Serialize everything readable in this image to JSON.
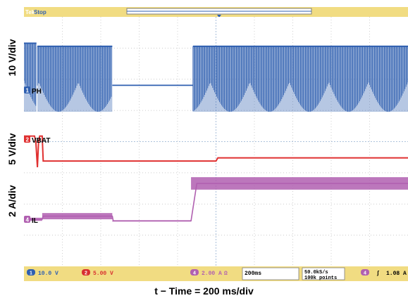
{
  "chart_data": {
    "type": "line",
    "title": "",
    "xlabel": "t − Time = 200 ms/div",
    "status": "Stop",
    "brand": "Tek",
    "x_unit": "ms",
    "x_divisions": 10,
    "xlim": [
      0,
      2000
    ],
    "y_axis_labels": [
      "10 V/div",
      "5 V/div",
      "2 A/div"
    ],
    "channels": [
      {
        "id": "1",
        "name": "PH",
        "scale": "10.0 V",
        "color": "#2f5fb0"
      },
      {
        "id": "2",
        "name": "VBAT",
        "scale": "5.00 V",
        "color": "#e03030"
      },
      {
        "id": "4",
        "name": "IL",
        "scale": "2.00 A",
        "color": "#b05fb0"
      }
    ],
    "series": [
      {
        "name": "PH",
        "channel": "1",
        "style": "switching",
        "segments": [
          {
            "t0": 0,
            "t1": 65,
            "state": "switching",
            "low_div": -0.7,
            "high_div": 1.5
          },
          {
            "t0": 70,
            "t1": 460,
            "state": "switching",
            "low_div": -0.7,
            "high_div": 1.4
          },
          {
            "t0": 460,
            "t1": 880,
            "state": "dc",
            "level_div": 0.15
          },
          {
            "t0": 880,
            "t1": 2000,
            "state": "switching",
            "low_div": -0.7,
            "high_div": 1.4
          }
        ]
      },
      {
        "name": "VBAT",
        "channel": "2",
        "style": "line",
        "points": [
          [
            0,
            0.1
          ],
          [
            55,
            0.1
          ],
          [
            62,
            -0.1
          ],
          [
            70,
            -0.9
          ],
          [
            76,
            -0.1
          ],
          [
            82,
            0.1
          ],
          [
            95,
            0.1
          ],
          [
            100,
            -0.7
          ],
          [
            1000,
            -0.7
          ],
          [
            1010,
            -0.6
          ],
          [
            2000,
            -0.6
          ]
        ]
      },
      {
        "name": "IL",
        "channel": "4",
        "style": "band",
        "points": [
          [
            0,
            0.0
          ],
          [
            95,
            0.0
          ],
          [
            100,
            0.1
          ],
          [
            460,
            0.1
          ],
          [
            465,
            -0.05
          ],
          [
            870,
            -0.05
          ],
          [
            900,
            1.15
          ],
          [
            2000,
            1.15
          ]
        ],
        "ripple_div": [
          [
            0,
            95,
            0.1
          ],
          [
            95,
            460,
            0.2
          ],
          [
            460,
            870,
            0.02
          ],
          [
            870,
            2000,
            0.4
          ]
        ]
      }
    ],
    "grid": true,
    "bottom_bar": {
      "ch1": "10.0 V",
      "ch2": "5.00 V",
      "ch4": "2.00 A",
      "ch4_suffix": "Ω",
      "timebase": "200ms",
      "sample_rate": "50.0kS/s",
      "record": "100k points",
      "trigger_ch": "4",
      "trigger_slope": "ʃ",
      "trigger_level": "1.08 A"
    }
  }
}
